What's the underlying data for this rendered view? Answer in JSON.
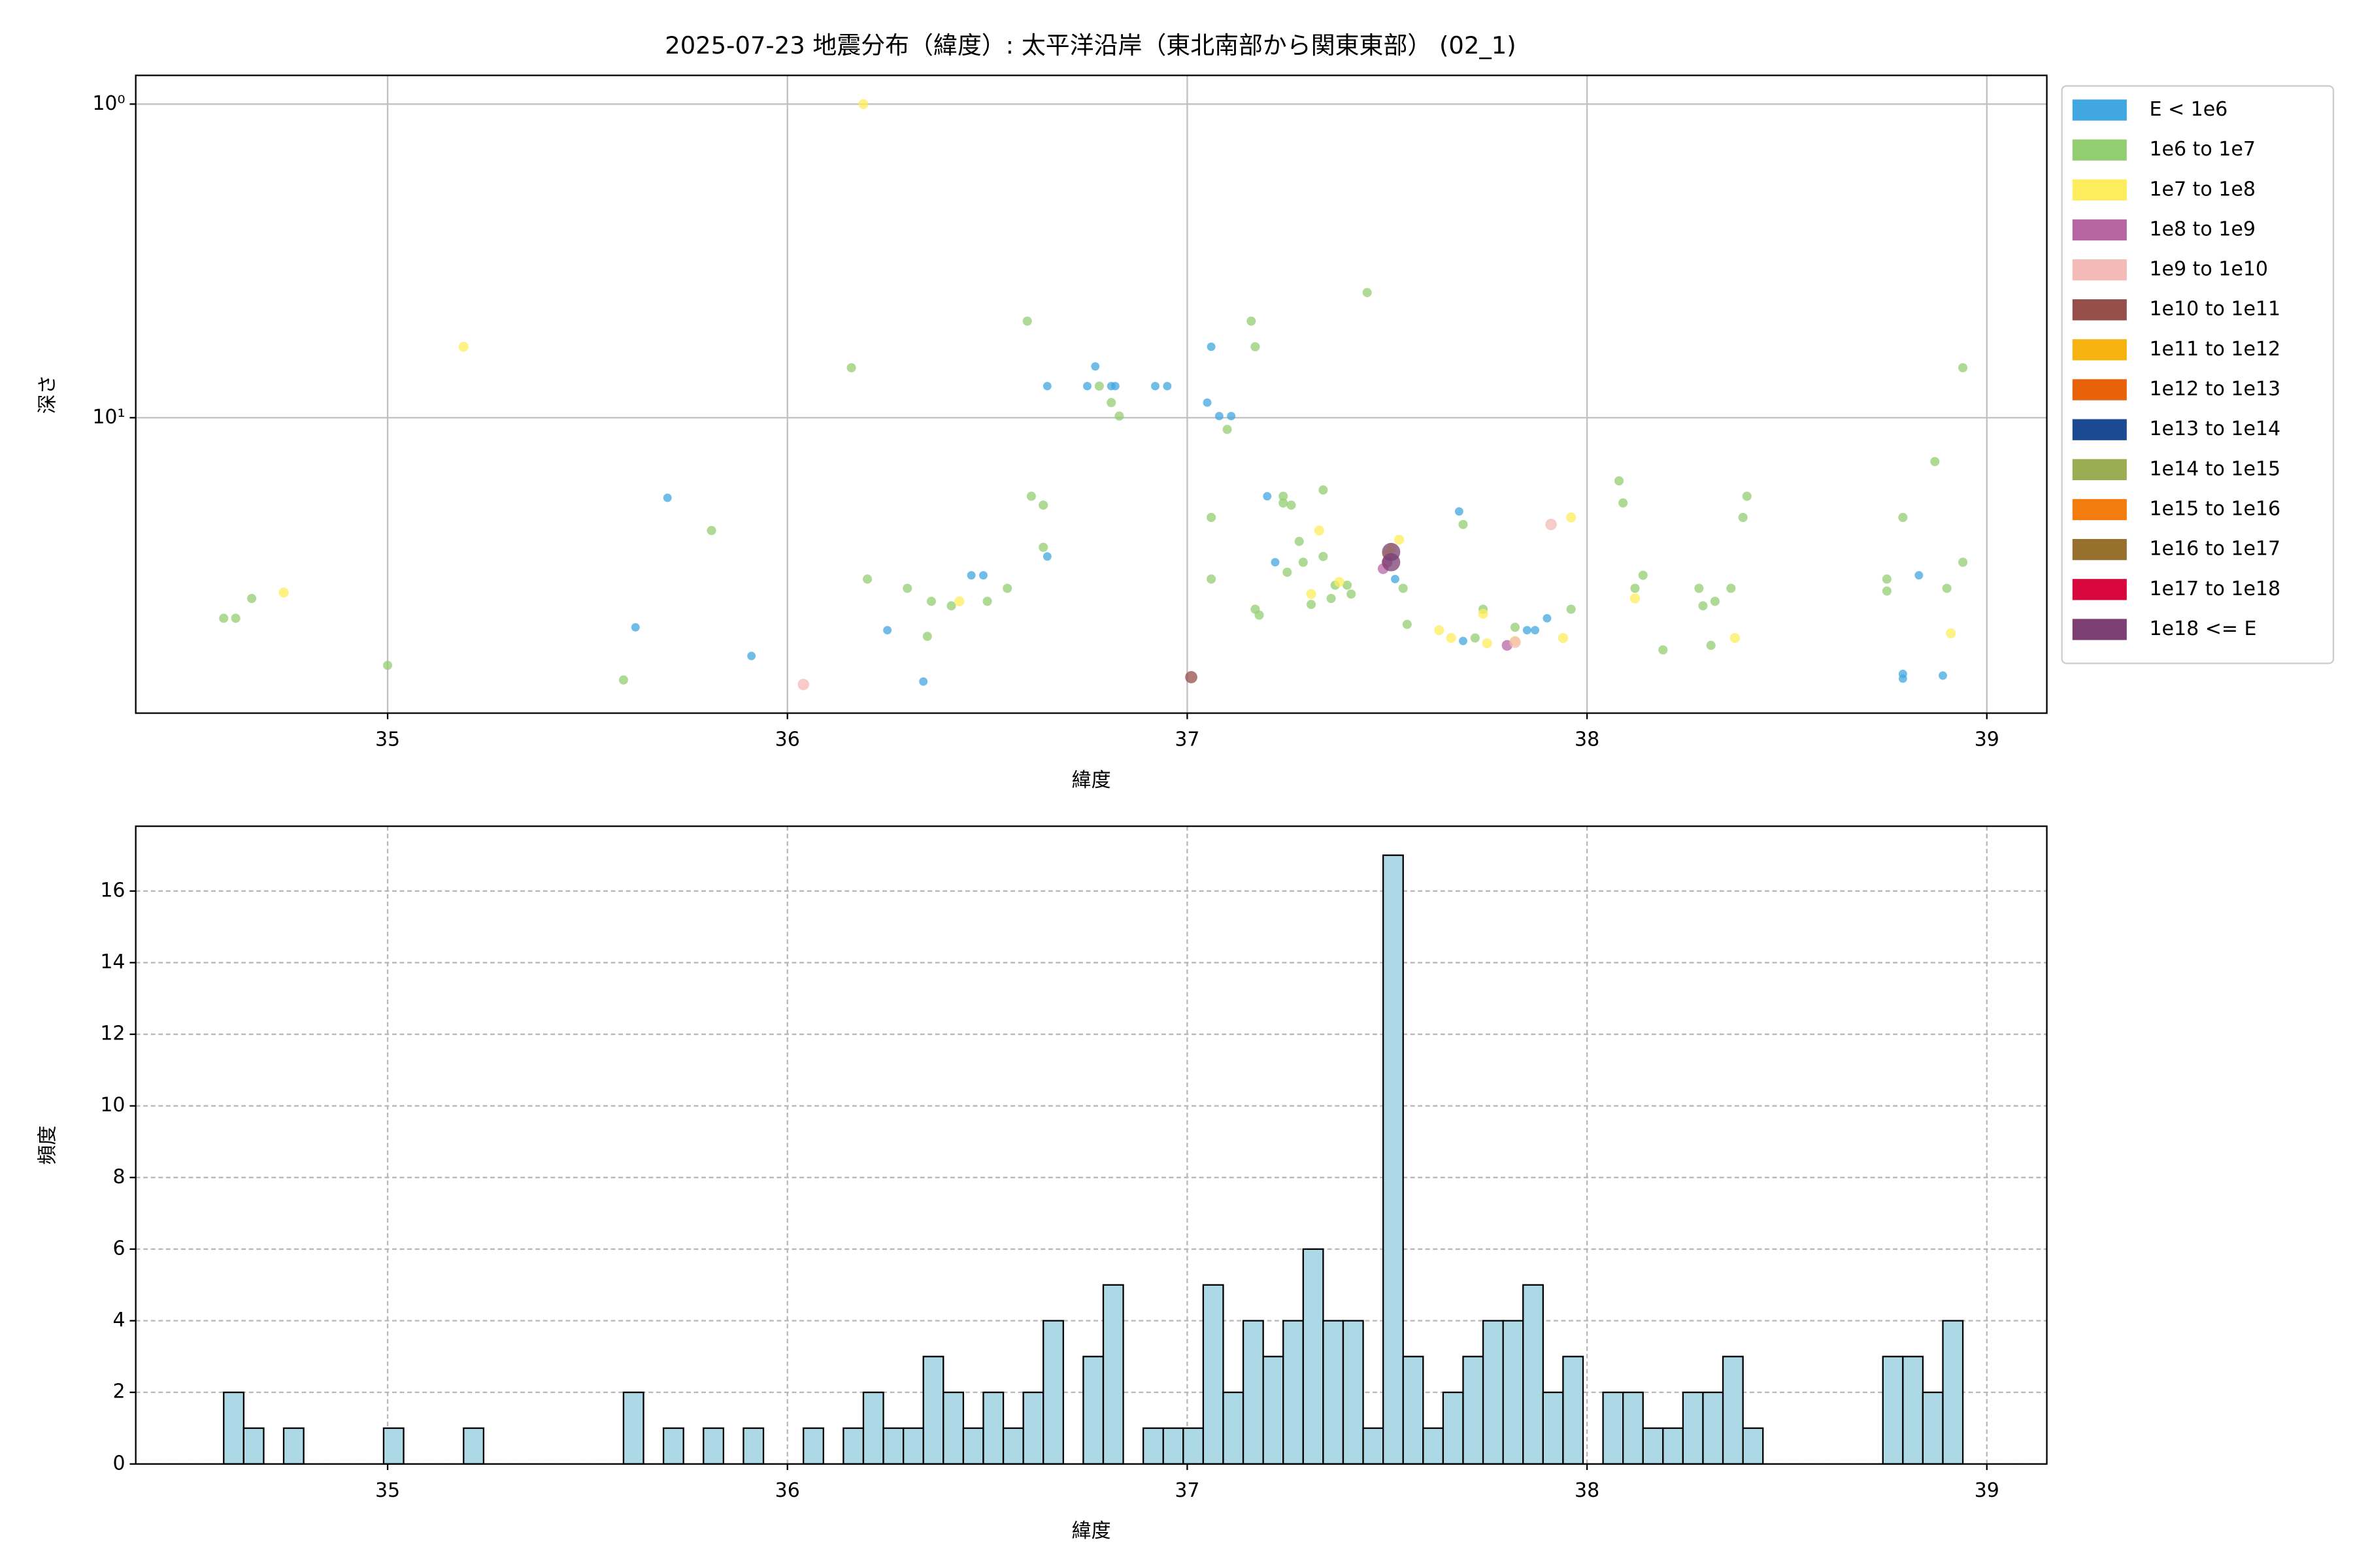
{
  "chart_data": [
    {
      "type": "scatter",
      "title": "2025-07-23 地震分布（緯度）: 太平洋沿岸（東北南部から関東東部） (02_1)",
      "xlabel": "緯度",
      "ylabel": "深さ",
      "xlim": [
        34.37,
        39.15
      ],
      "xticks": [
        35,
        36,
        37,
        38,
        39
      ],
      "ylim": [
        0.81,
        87.5
      ],
      "y_scale": "log",
      "y_inverted": true,
      "yticks": [
        {
          "value": 1,
          "label": "10⁰"
        },
        {
          "value": 10,
          "label": "10¹"
        }
      ],
      "grid": true,
      "legend": "outside upper right",
      "series": [
        {
          "name": "E < 1e6",
          "color": "#41a7e0",
          "x": [
            35.62,
            35.7,
            35.91,
            36.25,
            36.34,
            36.46,
            36.49,
            36.65,
            36.65,
            36.75,
            36.77,
            36.81,
            36.82,
            36.92,
            36.95,
            37.05,
            37.06,
            37.08,
            37.11,
            37.2,
            37.22,
            37.52,
            37.68,
            37.69,
            37.85,
            37.87,
            37.9,
            38.79,
            38.79,
            38.83,
            38.89
          ],
          "values": [
            46.6,
            18.0,
            57.5,
            47.6,
            69.4,
            31.8,
            31.8,
            7.93,
            27.7,
            7.93,
            6.86,
            7.93,
            7.93,
            7.93,
            7.93,
            8.95,
            5.94,
            9.88,
            9.88,
            17.8,
            28.9,
            32.7,
            19.9,
            51.5,
            47.6,
            47.6,
            43.6,
            65.6,
            67.9,
            31.8,
            66.4
          ]
        },
        {
          "name": "1e6 to 1e7",
          "color": "#93cd72",
          "x": [
            34.59,
            34.62,
            34.66,
            35.0,
            35.59,
            35.81,
            36.16,
            36.2,
            36.3,
            36.35,
            36.36,
            36.41,
            36.5,
            36.55,
            36.6,
            36.61,
            36.64,
            36.64,
            36.78,
            36.81,
            36.83,
            37.06,
            37.06,
            37.1,
            37.16,
            37.17,
            37.17,
            37.18,
            37.24,
            37.24,
            37.25,
            37.26,
            37.28,
            37.29,
            37.31,
            37.34,
            37.34,
            37.36,
            37.37,
            37.4,
            37.41,
            37.45,
            37.54,
            37.55,
            37.69,
            37.72,
            37.74,
            37.82,
            37.96,
            38.08,
            38.09,
            38.12,
            38.14,
            38.19,
            38.28,
            38.29,
            38.31,
            38.32,
            38.36,
            38.39,
            38.4,
            38.75,
            38.75,
            38.79,
            38.87,
            38.9,
            38.94,
            38.94
          ],
          "values": [
            43.6,
            43.6,
            37.7,
            61.6,
            68.6,
            22.9,
            6.93,
            32.7,
            35.0,
            49.8,
            38.5,
            39.8,
            38.5,
            35.0,
            4.92,
            17.8,
            19.0,
            25.9,
            7.93,
            8.95,
            9.88,
            20.8,
            32.7,
            10.9,
            4.92,
            5.94,
            40.8,
            42.6,
            18.7,
            17.8,
            31.1,
            19.0,
            24.8,
            28.9,
            39.4,
            17.0,
            27.7,
            37.7,
            34.2,
            34.2,
            36.5,
            3.99,
            35.0,
            45.6,
            21.9,
            50.4,
            40.8,
            46.6,
            40.8,
            15.9,
            18.7,
            35.0,
            31.8,
            55.0,
            35.0,
            39.8,
            53.2,
            38.5,
            35.0,
            20.8,
            17.8,
            32.7,
            35.7,
            20.8,
            13.8,
            35.0,
            6.93,
            28.9
          ]
        },
        {
          "name": "1e7 to 1e8",
          "color": "#fded5c",
          "x": [
            34.74,
            35.19,
            36.19,
            36.43,
            37.31,
            37.33,
            37.38,
            37.5,
            37.51,
            37.53,
            37.63,
            37.66,
            37.74,
            37.75,
            37.82,
            37.94,
            37.96,
            38.12,
            38.37,
            38.91
          ],
          "values": [
            36.1,
            5.94,
            1.0,
            38.5,
            36.5,
            22.9,
            33.4,
            27.3,
            26.1,
            24.5,
            47.6,
            50.4,
            42.2,
            52.4,
            51.5,
            50.4,
            20.8,
            37.7,
            50.4,
            48.7
          ]
        },
        {
          "name": "1e8 to 1e9",
          "color": "#b866a3",
          "x": [
            37.49,
            37.5,
            37.8
          ],
          "values": [
            30.3,
            28.9,
            53.2
          ]
        },
        {
          "name": "1e9 to 1e10",
          "color": "#f3bab7",
          "x": [
            36.04,
            37.82,
            37.91
          ],
          "values": [
            70.9,
            52.0,
            21.9
          ]
        },
        {
          "name": "1e10 to 1e11",
          "color": "#954f4a",
          "x": [
            37.01
          ],
          "values": [
            67.2
          ]
        },
        {
          "name": "1e11 to 1e12",
          "color": "#f6b20e",
          "x": [],
          "values": []
        },
        {
          "name": "1e12 to 1e13",
          "color": "#e8620c",
          "x": [],
          "values": []
        },
        {
          "name": "1e13 to 1e14",
          "color": "#1b4a93",
          "x": [],
          "values": []
        },
        {
          "name": "1e14 to 1e15",
          "color": "#9aad52",
          "x": [],
          "values": []
        },
        {
          "name": "1e15 to 1e16",
          "color": "#f47c0f",
          "x": [],
          "values": []
        },
        {
          "name": "1e16 to 1e17",
          "color": "#96702c",
          "x": [],
          "values": []
        },
        {
          "name": "1e17 to 1e18",
          "color": "#d8083f",
          "x": [],
          "values": []
        },
        {
          "name": "1e18 <= E",
          "color": "#7b3f73",
          "x": [
            37.51,
            37.51
          ],
          "values": [
            28.9,
            26.8
          ]
        }
      ]
    },
    {
      "type": "histogram",
      "xlabel": "緯度",
      "ylabel": "頻度",
      "xlim": [
        34.37,
        39.15
      ],
      "xticks": [
        35,
        36,
        37,
        38,
        39
      ],
      "ylim": [
        0,
        17.81
      ],
      "yticks": [
        0,
        2,
        4,
        6,
        8,
        10,
        12,
        14,
        16
      ],
      "grid": true,
      "grid_style": "dashed",
      "color": "#add8e6",
      "edgecolor": "#000000",
      "bins": [
        34.59,
        34.64,
        34.69,
        34.74,
        34.79,
        34.84,
        34.89,
        34.94,
        34.99,
        35.04,
        35.09,
        35.14,
        35.19,
        35.24,
        35.29,
        35.34,
        35.39,
        35.44,
        35.49,
        35.54,
        35.59,
        35.64,
        35.69,
        35.74,
        35.79,
        35.84,
        35.89,
        35.94,
        35.99,
        36.04,
        36.09,
        36.14,
        36.19,
        36.24,
        36.29,
        36.34,
        36.39,
        36.44,
        36.49,
        36.54,
        36.59,
        36.64,
        36.69,
        36.74,
        36.79,
        36.84,
        36.89,
        36.94,
        36.99,
        37.04,
        37.09,
        37.14,
        37.19,
        37.24,
        37.29,
        37.34,
        37.39,
        37.44,
        37.49,
        37.54,
        37.59,
        37.64,
        37.69,
        37.74,
        37.79,
        37.84,
        37.89,
        37.94,
        37.99,
        38.04,
        38.09,
        38.14,
        38.19,
        38.24,
        38.29,
        38.34,
        38.39,
        38.44,
        38.49,
        38.54,
        38.59,
        38.64,
        38.69,
        38.74,
        38.79,
        38.84,
        38.89,
        38.94
      ],
      "values": [
        2,
        1,
        0,
        1,
        0,
        0,
        0,
        0,
        1,
        0,
        0,
        0,
        1,
        0,
        0,
        0,
        0,
        0,
        0,
        0,
        2,
        0,
        1,
        0,
        1,
        0,
        1,
        0,
        0,
        1,
        0,
        1,
        2,
        1,
        1,
        3,
        2,
        1,
        2,
        1,
        2,
        4,
        0,
        3,
        5,
        0,
        1,
        1,
        1,
        5,
        2,
        4,
        3,
        4,
        6,
        4,
        4,
        1,
        17,
        3,
        1,
        2,
        3,
        4,
        4,
        5,
        2,
        3,
        0,
        2,
        2,
        1,
        1,
        2,
        2,
        3,
        1,
        0,
        0,
        0,
        0,
        0,
        0,
        3,
        3,
        2,
        4
      ]
    }
  ]
}
